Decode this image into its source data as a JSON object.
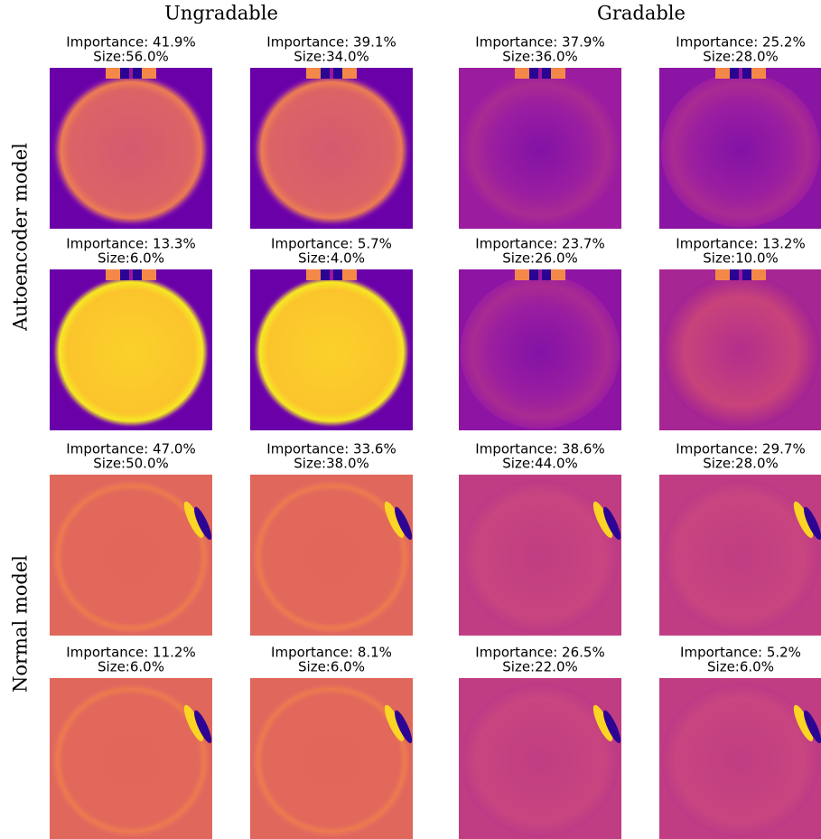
{
  "column_headers": [
    "Ungradable",
    "Gradable"
  ],
  "row_labels": [
    "Autoencoder model",
    "Normal model"
  ],
  "panels": [
    {
      "importance": "Importance: 41.9%",
      "size": "Size:56.0%"
    },
    {
      "importance": "Importance: 39.1%",
      "size": "Size:34.0%"
    },
    {
      "importance": "Importance: 37.9%",
      "size": "Size:36.0%"
    },
    {
      "importance": "Importance: 25.2%",
      "size": "Size:28.0%"
    },
    {
      "importance": "Importance: 13.3%",
      "size": "Size:6.0%"
    },
    {
      "importance": "Importance: 5.7%",
      "size": "Size:4.0%"
    },
    {
      "importance": "Importance: 23.7%",
      "size": "Size:26.0%"
    },
    {
      "importance": "Importance: 13.2%",
      "size": "Size:10.0%"
    },
    {
      "importance": "Importance: 47.0%",
      "size": "Size:50.0%"
    },
    {
      "importance": "Importance: 33.6%",
      "size": "Size:38.0%"
    },
    {
      "importance": "Importance: 38.6%",
      "size": "Size:44.0%"
    },
    {
      "importance": "Importance: 29.7%",
      "size": "Size:28.0%"
    },
    {
      "importance": "Importance: 11.2%",
      "size": "Size:6.0%"
    },
    {
      "importance": "Importance: 8.1%",
      "size": "Size:6.0%"
    },
    {
      "importance": "Importance: 26.5%",
      "size": "Size:22.0%"
    },
    {
      "importance": "Importance: 5.2%",
      "size": "Size:6.0%"
    }
  ]
}
